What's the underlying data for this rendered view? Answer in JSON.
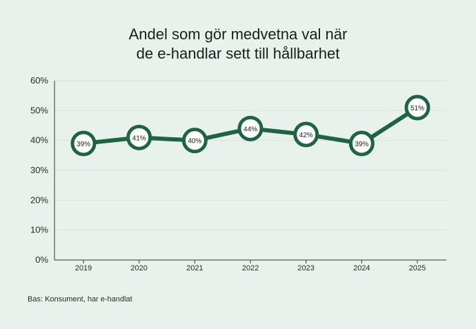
{
  "title_lines": [
    "Andel som gör medvetna val när",
    "de e-handlar sett till hållbarhet"
  ],
  "footnote": "Bas: Konsument, har e-handlat",
  "colors": {
    "background": "#e8f1eb",
    "line": "#1c6444",
    "grid": "#d6e3da",
    "axis": "#333333",
    "text": "#1d2b22"
  },
  "chart_data": {
    "type": "line",
    "title": "Andel som gör medvetna val när de e-handlar sett till hållbarhet",
    "categories": [
      "2019",
      "2020",
      "2021",
      "2022",
      "2023",
      "2024",
      "2025"
    ],
    "values": [
      39,
      41,
      40,
      44,
      42,
      39,
      51
    ],
    "data_labels": [
      "39%",
      "41%",
      "40%",
      "44%",
      "42%",
      "39%",
      "51%"
    ],
    "y_ticks": [
      0,
      10,
      20,
      30,
      40,
      50,
      60
    ],
    "y_tick_labels": [
      "0%",
      "10%",
      "20%",
      "30%",
      "40%",
      "50%",
      "60%"
    ],
    "ylim": [
      0,
      60
    ],
    "grid": true,
    "legend": false
  }
}
